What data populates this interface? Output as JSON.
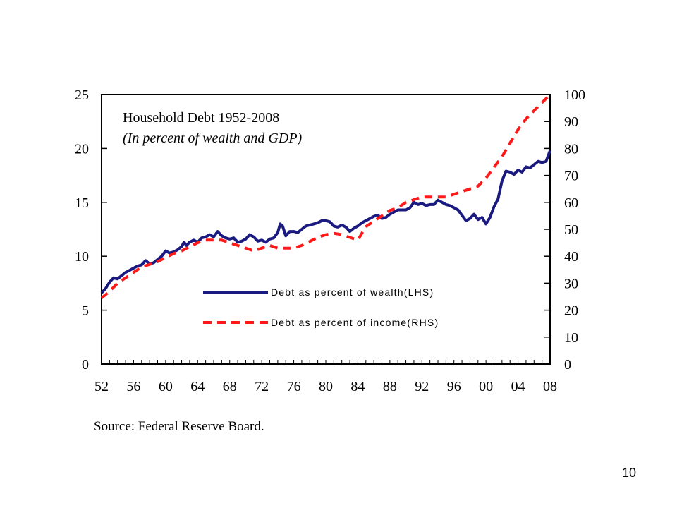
{
  "slide": {
    "page_number": "10"
  },
  "source": "Source: Federal Reserve Board.",
  "colors": {
    "wealth_line": "#1a1a80",
    "income_line": "#ff1a1a",
    "axis": "#000000"
  },
  "chart_data": {
    "type": "line",
    "title": "Household Debt 1952-2008",
    "subtitle": "(In percent of wealth and GDP)",
    "x_tick_labels": [
      "52",
      "56",
      "60",
      "64",
      "68",
      "72",
      "76",
      "80",
      "84",
      "88",
      "92",
      "96",
      "00",
      "04",
      "08"
    ],
    "x_tick_years": [
      1952,
      1956,
      1960,
      1964,
      1968,
      1972,
      1976,
      1980,
      1984,
      1988,
      1992,
      1996,
      2000,
      2004,
      2008
    ],
    "xlim": [
      1952,
      2008
    ],
    "y_left": {
      "ylim": [
        0,
        25
      ],
      "ticks": [
        0,
        5,
        10,
        15,
        20,
        25
      ]
    },
    "y_right": {
      "ylim": [
        0,
        100
      ],
      "ticks": [
        0,
        10,
        20,
        30,
        40,
        50,
        60,
        70,
        80,
        90,
        100
      ]
    },
    "legend_position": "center-right",
    "grid": false,
    "series": [
      {
        "name": "Debt as percent of wealth(LHS)",
        "axis": "left",
        "style": "solid",
        "x": [
          1952,
          1952.5,
          1953,
          1953.5,
          1954,
          1954.5,
          1955,
          1955.5,
          1956,
          1956.5,
          1957,
          1957.5,
          1958,
          1958.5,
          1959,
          1959.5,
          1960,
          1960.5,
          1961,
          1961.5,
          1962,
          1962.3,
          1962.6,
          1963,
          1963.5,
          1964,
          1964.5,
          1965,
          1965.5,
          1966,
          1966.5,
          1967,
          1967.5,
          1968,
          1968.5,
          1969,
          1969.5,
          1970,
          1970.5,
          1971,
          1971.5,
          1972,
          1972.5,
          1973,
          1973.5,
          1974,
          1974.3,
          1974.6,
          1975,
          1975.5,
          1976,
          1976.5,
          1977,
          1977.5,
          1978,
          1978.5,
          1979,
          1979.5,
          1980,
          1980.5,
          1981,
          1981.5,
          1982,
          1982.5,
          1983,
          1983.5,
          1984,
          1984.5,
          1985,
          1985.5,
          1986,
          1986.5,
          1987,
          1987.5,
          1988,
          1988.5,
          1989,
          1989.5,
          1990,
          1990.5,
          1991,
          1991.5,
          1992,
          1992.5,
          1993,
          1993.5,
          1994,
          1994.5,
          1995,
          1995.5,
          1996,
          1996.5,
          1997,
          1997.5,
          1998,
          1998.5,
          1999,
          1999.5,
          2000,
          2000.5,
          2001,
          2001.5,
          2002,
          2002.5,
          2003,
          2003.5,
          2004,
          2004.5,
          2005,
          2005.5,
          2006,
          2006.5,
          2007,
          2007.5,
          2008
        ],
        "values": [
          6.6,
          7.0,
          7.6,
          8.0,
          7.9,
          8.2,
          8.5,
          8.7,
          8.9,
          9.1,
          9.2,
          9.6,
          9.3,
          9.4,
          9.7,
          10.0,
          10.5,
          10.3,
          10.4,
          10.6,
          10.9,
          11.3,
          11.0,
          11.3,
          11.5,
          11.3,
          11.7,
          11.8,
          12.0,
          11.8,
          12.3,
          11.9,
          11.7,
          11.6,
          11.7,
          11.3,
          11.4,
          11.6,
          12.0,
          11.8,
          11.4,
          11.5,
          11.3,
          11.6,
          11.7,
          12.2,
          13.0,
          12.8,
          11.9,
          12.3,
          12.3,
          12.2,
          12.5,
          12.8,
          12.9,
          13.0,
          13.1,
          13.3,
          13.3,
          13.2,
          12.8,
          12.7,
          12.9,
          12.7,
          12.3,
          12.6,
          12.8,
          13.1,
          13.3,
          13.5,
          13.7,
          13.8,
          13.5,
          13.6,
          13.9,
          14.1,
          14.3,
          14.3,
          14.3,
          14.5,
          15.0,
          14.8,
          14.9,
          14.7,
          14.8,
          14.8,
          15.2,
          15.0,
          14.8,
          14.7,
          14.5,
          14.3,
          13.8,
          13.3,
          13.5,
          13.9,
          13.4,
          13.6,
          13.0,
          13.6,
          14.6,
          15.3,
          17.0,
          17.9,
          17.8,
          17.6,
          18.0,
          17.8,
          18.3,
          18.2,
          18.5,
          18.8,
          18.7,
          18.8,
          19.8
        ]
      },
      {
        "name": "Debt as percent of income(RHS)",
        "axis": "right",
        "style": "dashed",
        "x": [
          1952,
          1953,
          1954,
          1955,
          1956,
          1957,
          1958,
          1959,
          1960,
          1961,
          1962,
          1963,
          1964,
          1965,
          1966,
          1967,
          1968,
          1969,
          1970,
          1971,
          1972,
          1973,
          1974,
          1975,
          1976,
          1977,
          1978,
          1979,
          1980,
          1981,
          1982,
          1983,
          1984,
          1985,
          1986,
          1987,
          1988,
          1989,
          1990,
          1991,
          1992,
          1993,
          1994,
          1995,
          1996,
          1997,
          1998,
          1999,
          2000,
          2001,
          2002,
          2003,
          2004,
          2005,
          2006,
          2007,
          2008
        ],
        "values": [
          24.5,
          27,
          30,
          32,
          34,
          36,
          37,
          38,
          39.5,
          41,
          42,
          43.5,
          45,
          46,
          46,
          46,
          45,
          44,
          43,
          42,
          43,
          44,
          43,
          43,
          43,
          44,
          45.5,
          47,
          48,
          48.5,
          48,
          47,
          46,
          51,
          53,
          55,
          57,
          58,
          60,
          61,
          62,
          62,
          62,
          62,
          63,
          64,
          65,
          66,
          69,
          73,
          77,
          82,
          87,
          91,
          94,
          97,
          100
        ]
      }
    ]
  }
}
